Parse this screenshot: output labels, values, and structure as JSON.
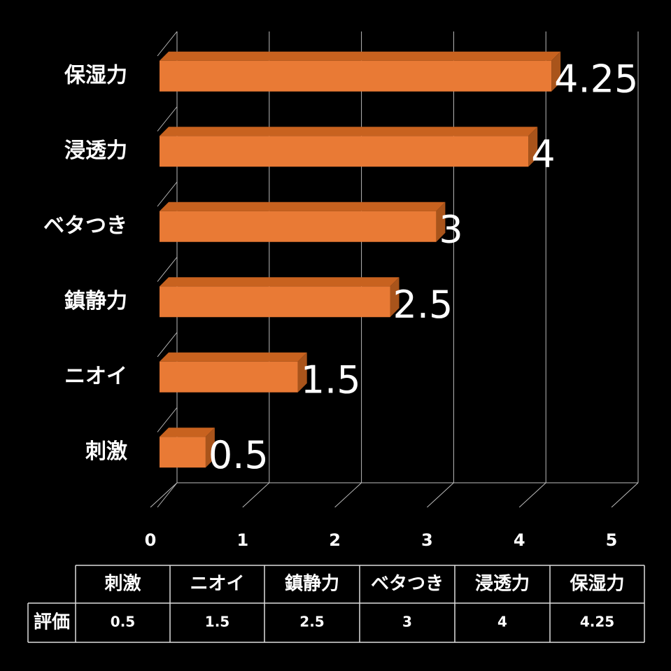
{
  "chart_data": {
    "type": "bar",
    "orientation": "horizontal",
    "categories": [
      "刺激",
      "ニオイ",
      "鎮静力",
      "ベタつき",
      "浸透力",
      "保湿力"
    ],
    "values": [
      0.5,
      1.5,
      2.5,
      3,
      4,
      4.25
    ],
    "color": "#e97a35",
    "xlim": [
      0,
      5
    ],
    "xticks": [
      0,
      1,
      2,
      3,
      4,
      5
    ],
    "grid": true,
    "table_row_label": "評価"
  }
}
